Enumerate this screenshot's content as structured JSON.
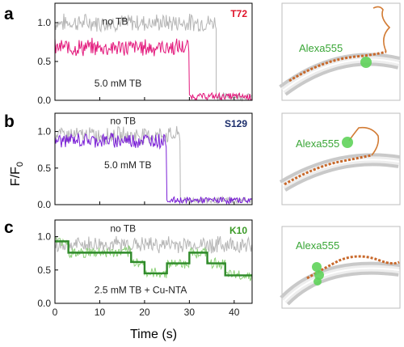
{
  "chart_data": [
    {
      "type": "line",
      "panel": "a",
      "tag": "T72",
      "tag_color": "#e0142a",
      "xlim": [
        0,
        44
      ],
      "ylim": [
        0,
        1.25
      ],
      "yticks": [
        0.0,
        0.5,
        1.0
      ],
      "ytick_labels": [
        "0.0",
        "0.5",
        "1.0"
      ],
      "annotations": [
        "no TB",
        "5.0 mM TB"
      ],
      "series": [
        {
          "name": "no TB",
          "color": "#b5b5b5",
          "segments": [
            {
              "x0": 0,
              "x1": 36,
              "y": 1.0,
              "noise": 0.1
            },
            {
              "x0": 36,
              "x1": 44,
              "y": 0.05,
              "noise": 0.04
            }
          ]
        },
        {
          "name": "5.0 mM TB",
          "color": "#e3177b",
          "segments": [
            {
              "x0": 0,
              "x1": 30,
              "y": 0.68,
              "noise": 0.1
            },
            {
              "x0": 30,
              "x1": 44,
              "y": 0.05,
              "noise": 0.04
            }
          ]
        }
      ],
      "schematic_label": "Alexa555"
    },
    {
      "type": "line",
      "panel": "b",
      "tag": "S129",
      "tag_color": "#1b2d6b",
      "xlim": [
        0,
        44
      ],
      "ylim": [
        0,
        1.25
      ],
      "yticks": [
        0.0,
        0.5,
        1.0
      ],
      "ytick_labels": [
        "0.0",
        "0.5",
        "1.0"
      ],
      "annotations": [
        "no TB",
        "5.0 mM TB"
      ],
      "series": [
        {
          "name": "no TB",
          "color": "#b5b5b5",
          "segments": [
            {
              "x0": 0,
              "x1": 28,
              "y": 0.95,
              "noise": 0.1
            },
            {
              "x0": 28,
              "x1": 44,
              "y": 0.06,
              "noise": 0.04
            }
          ]
        },
        {
          "name": "5.0 mM TB",
          "color": "#7a1fd6",
          "segments": [
            {
              "x0": 0,
              "x1": 25,
              "y": 0.88,
              "noise": 0.09
            },
            {
              "x0": 25,
              "x1": 44,
              "y": 0.06,
              "noise": 0.04
            }
          ]
        }
      ],
      "schematic_label": "Alexa555"
    },
    {
      "type": "line",
      "panel": "c",
      "tag": "K10",
      "tag_color": "#3a9a26",
      "xlim": [
        0,
        44
      ],
      "ylim": [
        0,
        1.25
      ],
      "xticks": [
        0,
        10,
        20,
        30,
        40
      ],
      "xtick_labels": [
        "0",
        "10",
        "20",
        "30",
        "40"
      ],
      "yticks": [
        0.0,
        0.5,
        1.0
      ],
      "ytick_labels": [
        "0.0",
        "0.5",
        "1.0"
      ],
      "annotations": [
        "no TB",
        "2.5 mM TB + Cu-NTA"
      ],
      "series": [
        {
          "name": "no TB",
          "color": "#b5b5b5",
          "segments": [
            {
              "x0": 0,
              "x1": 44,
              "y": 0.88,
              "noise": 0.11
            }
          ]
        },
        {
          "name": "2.5 mM TB + Cu-NTA",
          "color": "#8ed27a",
          "segments": [
            {
              "x0": 0,
              "x1": 3,
              "y": 0.93,
              "noise": 0.07
            },
            {
              "x0": 3,
              "x1": 17,
              "y": 0.76,
              "noise": 0.08
            },
            {
              "x0": 17,
              "x1": 20,
              "y": 0.62,
              "noise": 0.07
            },
            {
              "x0": 20,
              "x1": 25,
              "y": 0.45,
              "noise": 0.07
            },
            {
              "x0": 25,
              "x1": 30,
              "y": 0.6,
              "noise": 0.07
            },
            {
              "x0": 30,
              "x1": 34,
              "y": 0.76,
              "noise": 0.07
            },
            {
              "x0": 34,
              "x1": 38,
              "y": 0.6,
              "noise": 0.07
            },
            {
              "x0": 38,
              "x1": 44,
              "y": 0.42,
              "noise": 0.07
            }
          ]
        },
        {
          "name": "step fit",
          "color": "#2f8a2a",
          "steps": [
            [
              0,
              0.93
            ],
            [
              3,
              0.76
            ],
            [
              17,
              0.62
            ],
            [
              20,
              0.45
            ],
            [
              25,
              0.6
            ],
            [
              30,
              0.76
            ],
            [
              34,
              0.6
            ],
            [
              38,
              0.42
            ],
            [
              44,
              0.42
            ]
          ]
        }
      ],
      "schematic_label": "Alexa555"
    }
  ],
  "ylabel": "F/F",
  "ylabel_sub": "0",
  "xlabel": "Time (s)"
}
